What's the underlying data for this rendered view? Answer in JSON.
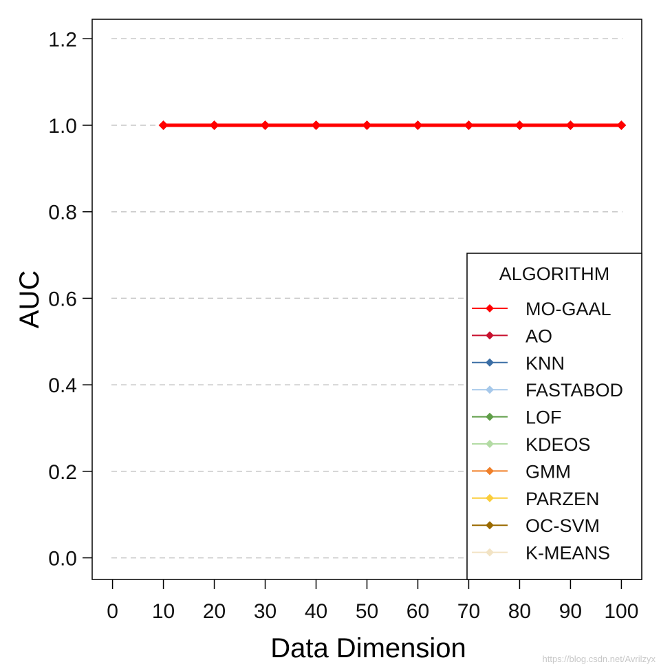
{
  "chart_data": {
    "type": "line",
    "title": "",
    "xlabel": "Data Dimension",
    "ylabel": "AUC",
    "xlim": [
      -4,
      104
    ],
    "ylim": [
      -0.05,
      1.245
    ],
    "xticks": [
      0,
      10,
      20,
      30,
      40,
      50,
      60,
      70,
      80,
      90,
      100
    ],
    "xtick_labels": [
      "0",
      "10",
      "20",
      "30",
      "40",
      "50",
      "60",
      "70",
      "80",
      "90",
      "100"
    ],
    "yticks": [
      0.0,
      0.2,
      0.4,
      0.6,
      0.8,
      1.0,
      1.2
    ],
    "ytick_labels": [
      "0.0",
      "0.2",
      "0.4",
      "0.6",
      "0.8",
      "1.0",
      "1.2"
    ],
    "grid": "horizontal-dashed",
    "legend": {
      "title": "ALGORITHM",
      "placement": "bottom-right",
      "entries": [
        {
          "name": "MO-GAAL",
          "color": "#ff0000"
        },
        {
          "name": "AO",
          "color": "#c8102e"
        },
        {
          "name": "KNN",
          "color": "#3a6ea5"
        },
        {
          "name": "FASTABOD",
          "color": "#a6c8ea"
        },
        {
          "name": "LOF",
          "color": "#5f9e48"
        },
        {
          "name": "KDEOS",
          "color": "#b3dba4"
        },
        {
          "name": "GMM",
          "color": "#f07f28"
        },
        {
          "name": "PARZEN",
          "color": "#fbcd3a"
        },
        {
          "name": "OC-SVM",
          "color": "#9a6a00"
        },
        {
          "name": "K-MEANS",
          "color": "#f2e3c4"
        }
      ]
    },
    "series": [
      {
        "name": "MO-GAAL",
        "color": "#ff0000",
        "x": [
          10,
          20,
          30,
          40,
          50,
          60,
          70,
          80,
          90,
          100
        ],
        "values": [
          1.0,
          1.0,
          1.0,
          1.0,
          1.0,
          1.0,
          1.0,
          1.0,
          1.0,
          1.0
        ]
      }
    ]
  },
  "watermark": "https://blog.csdn.net/Avrilzyx"
}
